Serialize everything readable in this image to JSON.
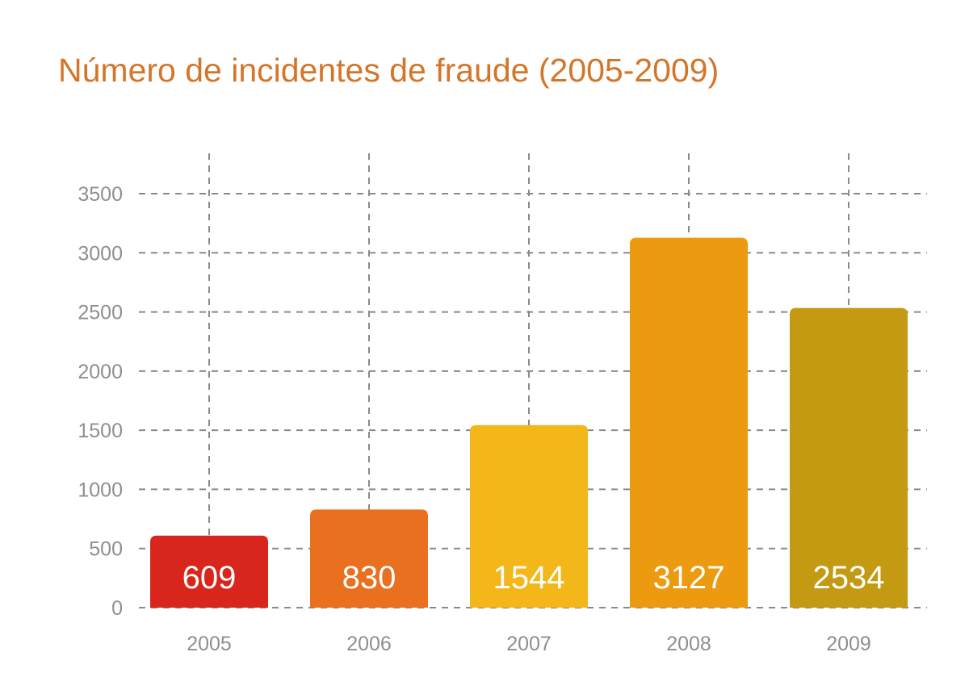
{
  "chart_data": {
    "type": "bar",
    "title": "Número de incidentes de fraude (2005-2009)",
    "xlabel": "",
    "ylabel": "",
    "categories": [
      "2005",
      "2006",
      "2007",
      "2008",
      "2009"
    ],
    "values": [
      609,
      830,
      1544,
      3127,
      2534
    ],
    "data_labels": [
      "609",
      "830",
      "1544",
      "3127",
      "2534"
    ],
    "ylim": [
      0,
      3500
    ],
    "yticks": [
      0,
      500,
      1000,
      1500,
      2000,
      2500,
      3000,
      3500
    ],
    "ytick_labels": [
      "0",
      "500",
      "1000",
      "1500",
      "2000",
      "2500",
      "3000",
      "3500"
    ],
    "grid": true,
    "legend": "none",
    "colors": {
      "title": "#d4762a",
      "bars": [
        "#d9261c",
        "#e8701e",
        "#f4b71a",
        "#ec9a10",
        "#c39a12"
      ],
      "grid": "#8a8a8a",
      "tick_text": "#8f8f8f",
      "data_label": "#ffffff"
    }
  }
}
